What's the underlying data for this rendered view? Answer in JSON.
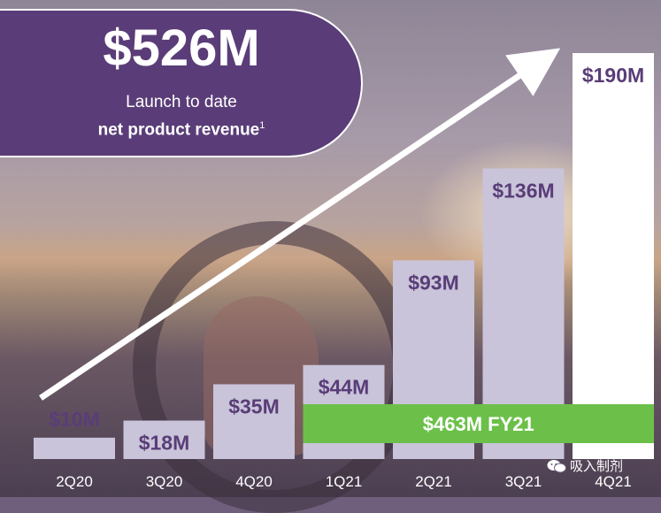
{
  "headline": {
    "amount": "$526M",
    "line1": "Launch to date",
    "line2": "net product revenue",
    "footnote": "1"
  },
  "colors": {
    "bar": "#c9c4d9",
    "bar_last": "#ffffff",
    "bar_label": "#5a3d78",
    "fy_band": "#6cc04a",
    "headline_bg": "#5a3d78"
  },
  "chart_data": {
    "type": "bar",
    "categories": [
      "2Q20",
      "3Q20",
      "4Q20",
      "1Q21",
      "2Q21",
      "3Q21",
      "4Q21"
    ],
    "values": [
      10,
      18,
      35,
      44,
      93,
      136,
      190
    ],
    "unit": "$M",
    "data_labels": [
      "$10M",
      "$18M",
      "$35M",
      "$44M",
      "$93M",
      "$136M",
      "$190M"
    ],
    "annotation": "$463M FY21",
    "ylim": [
      0,
      190
    ]
  },
  "watermark": {
    "text": "吸入制剂",
    "icon": "wechat-icon"
  }
}
